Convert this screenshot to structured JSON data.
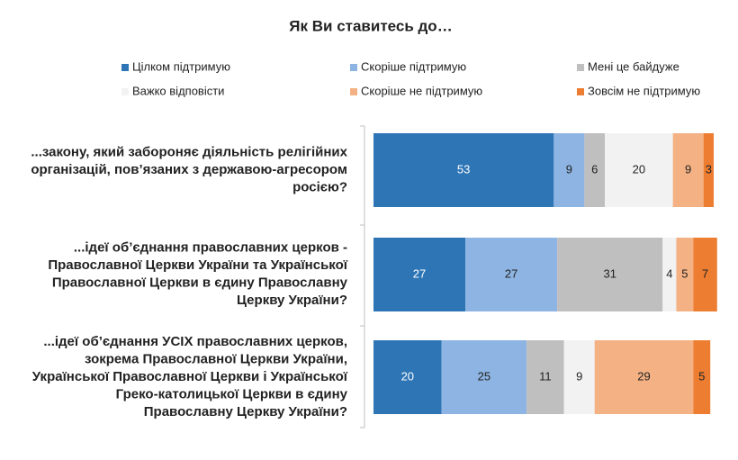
{
  "chart_data": {
    "type": "bar",
    "orientation": "horizontal",
    "stacked": true,
    "title": "Як Ви ставитесь до…",
    "categories": [
      [
        "...закону, який забороняє діяльність релігійних",
        "організацій, пов’язаних з державою-агресором",
        "росією?"
      ],
      [
        "...ідеї об’єднання православних церков -",
        "Православної Церкви України та Української",
        "Православної Церкви в єдину Православну",
        "Церкву України?"
      ],
      [
        "...ідеї об’єднання УСІХ православних церков,",
        "зокрема Православної Церкви України,",
        "Української Православної Церкви і Української",
        "Греко-католицької Церкви в єдину",
        "Православну Церкву України?"
      ]
    ],
    "series": [
      {
        "name": "Цілком підтримую",
        "color": "#2e75b6",
        "values": [
          53,
          27,
          20
        ]
      },
      {
        "name": "Скоріше підтримую",
        "color": "#8db4e2",
        "values": [
          9,
          27,
          25
        ]
      },
      {
        "name": "Мені це байдуже",
        "color": "#bfbfbf",
        "values": [
          6,
          31,
          11
        ]
      },
      {
        "name": "Важко відповісти",
        "color": "#f2f2f2",
        "values": [
          20,
          4,
          9
        ]
      },
      {
        "name": "Скоріше не підтримую",
        "color": "#f4b183",
        "values": [
          9,
          5,
          29
        ]
      },
      {
        "name": "Зовсім не підтримую",
        "color": "#ed7d31",
        "values": [
          3,
          7,
          5
        ]
      }
    ],
    "xlim": [
      0,
      100
    ]
  }
}
